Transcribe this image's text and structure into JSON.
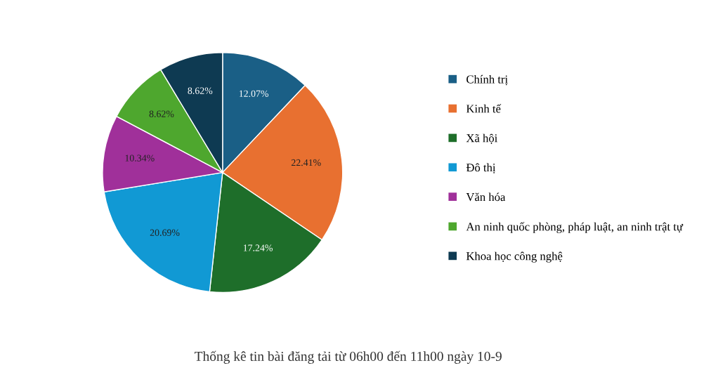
{
  "chart_data": {
    "type": "pie",
    "title": "Thống kê tin bài đăng tải từ 06h00 đến 11h00 ngày 10-9",
    "categories": [
      "Chính trị",
      "Kinh tế",
      "Xã hội",
      "Đô thị",
      "Văn hóa",
      "An ninh quốc phòng, pháp luật, an ninh trật tự",
      "Khoa học công nghệ"
    ],
    "values": [
      12.07,
      22.41,
      17.24,
      20.69,
      10.34,
      8.62,
      8.62
    ],
    "value_labels": [
      "12.07%",
      "22.41%",
      "17.24%",
      "20.69%",
      "10.34%",
      "8.62%",
      "8.62%"
    ],
    "colors": [
      "#1a5f86",
      "#e87030",
      "#1e6e2a",
      "#1199d4",
      "#a0309a",
      "#4ea72e",
      "#0e3a52"
    ],
    "legend": "right"
  }
}
